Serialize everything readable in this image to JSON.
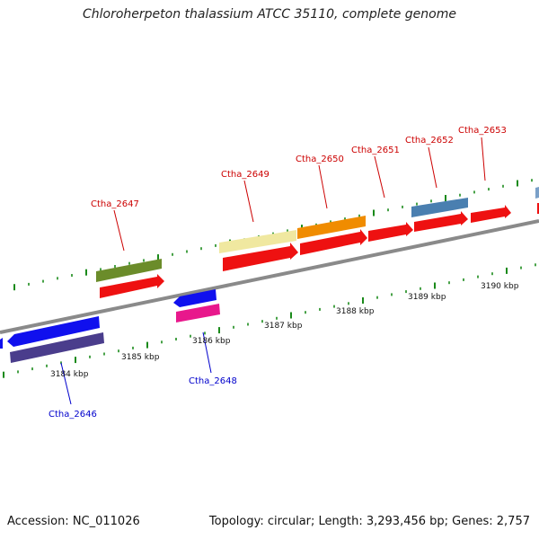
{
  "header": {
    "title": "Chloroherpeton thalassium ATCC 35110, complete genome"
  },
  "footer": {
    "accession": "Accession: NC_011026",
    "summary": "Topology: circular; Length: 3,293,456 bp; Genes: 2,757"
  },
  "colors": {
    "backbone": "#8a8a8a",
    "tick": "#1a8a1a",
    "label_forward": "#cc0000",
    "label_reverse": "#0000cc"
  },
  "scale_labels": [
    "3184 kbp",
    "3185 kbp",
    "3186 kbp",
    "3187 kbp",
    "3188 kbp",
    "3189 kbp",
    "3190 kbp"
  ],
  "gene_labels": [
    {
      "text": "Ctha_2647",
      "strand": "forward"
    },
    {
      "text": "Ctha_2649",
      "strand": "forward"
    },
    {
      "text": "Ctha_2650",
      "strand": "forward"
    },
    {
      "text": "Ctha_2651",
      "strand": "forward"
    },
    {
      "text": "Ctha_2652",
      "strand": "forward"
    },
    {
      "text": "Ctha_2653",
      "strand": "forward"
    },
    {
      "text": "Ctha_2646",
      "strand": "reverse"
    },
    {
      "text": "Ctha_2648",
      "strand": "reverse"
    }
  ],
  "features": [
    {
      "name": "cog-bar-1",
      "color": "#6b8c2a"
    },
    {
      "name": "gene-arrow-1",
      "color": "#ee1111"
    },
    {
      "name": "cog-bar-2",
      "color": "#f0e8a0"
    },
    {
      "name": "gene-arrow-2",
      "color": "#ee1111"
    },
    {
      "name": "cog-bar-3",
      "color": "#f08c00"
    },
    {
      "name": "gene-arrow-3",
      "color": "#ee1111"
    },
    {
      "name": "gene-arrow-4",
      "color": "#ee1111"
    },
    {
      "name": "cog-bar-5",
      "color": "#4a7fb0"
    },
    {
      "name": "gene-arrow-5",
      "color": "#ee1111"
    },
    {
      "name": "gene-arrow-6",
      "color": "#ee1111"
    },
    {
      "name": "gene-arrow-rev-1",
      "color": "#1010ee"
    },
    {
      "name": "cog-bar-rev-1",
      "color": "#4a3d8c"
    },
    {
      "name": "gene-arrow-rev-2",
      "color": "#1010ee"
    },
    {
      "name": "cog-bar-rev-2",
      "color": "#e8188c"
    }
  ]
}
